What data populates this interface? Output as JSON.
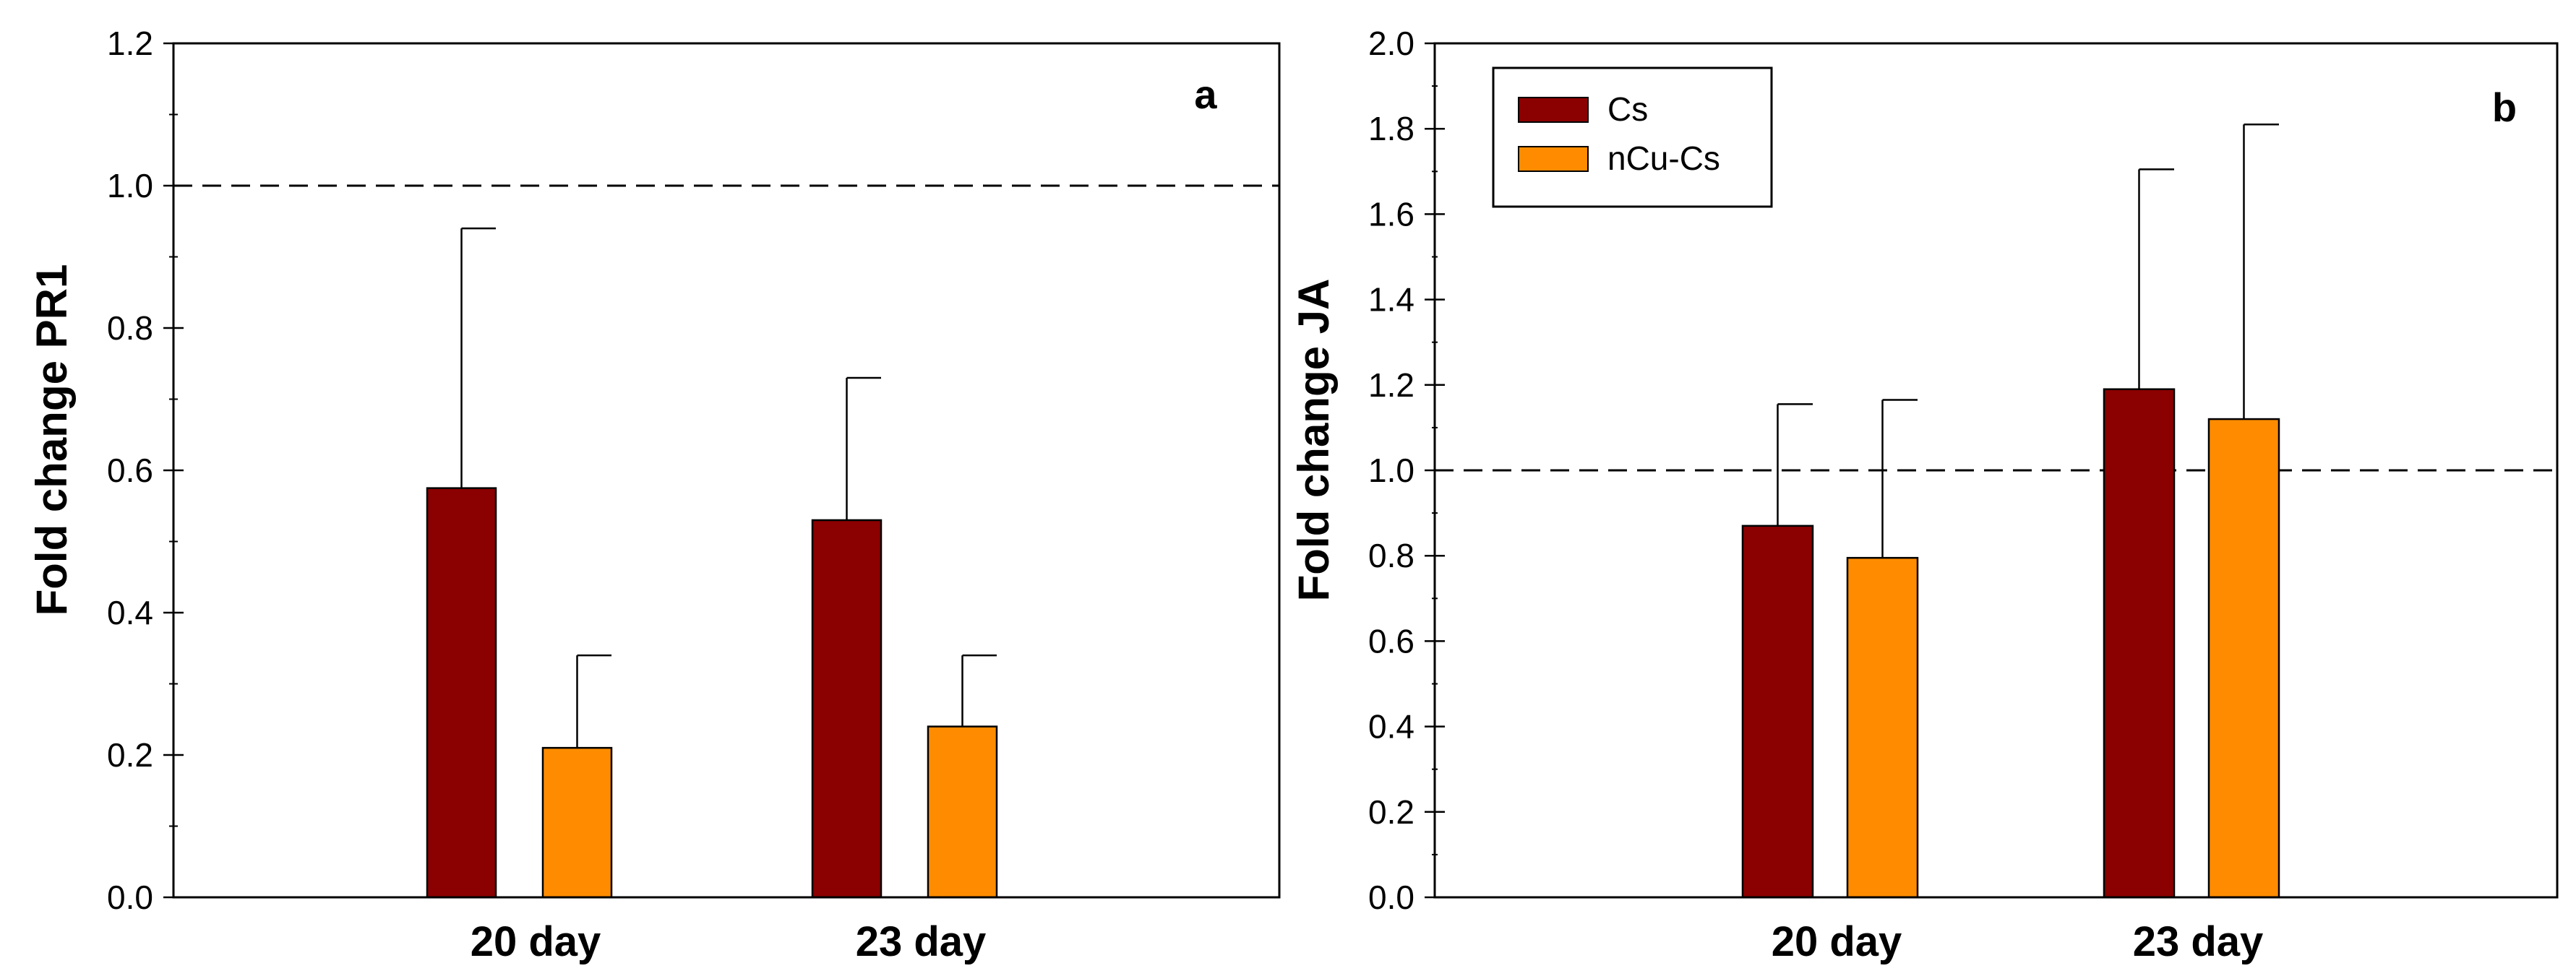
{
  "colors": {
    "Cs": "#8b0000",
    "nCu-Cs": "#ff8c00",
    "reference_line": "#000000"
  },
  "legend": {
    "placement": "top-left",
    "entries": [
      {
        "key": "Cs",
        "label": "Cs"
      },
      {
        "key": "nCu-Cs",
        "label": "nCu-Cs"
      }
    ]
  },
  "chart_data": [
    {
      "type": "bar",
      "panel": "a",
      "ylabel": "Fold change PR1",
      "xlabel": "",
      "categories": [
        "20 day",
        "23 day"
      ],
      "ylim": [
        0.0,
        1.2
      ],
      "yticks": [
        "0.0",
        "0.2",
        "0.4",
        "0.6",
        "0.8",
        "1.0",
        "1.2"
      ],
      "reference_line": 1.0,
      "grid": false,
      "series": [
        {
          "key": "Cs",
          "name": "Cs",
          "values": [
            0.575,
            0.53
          ],
          "error_upper": [
            0.94,
            0.73
          ]
        },
        {
          "key": "nCu-Cs",
          "name": "nCu-Cs",
          "values": [
            0.21,
            0.24
          ],
          "error_upper": [
            0.34,
            0.34
          ]
        }
      ]
    },
    {
      "type": "bar",
      "panel": "b",
      "ylabel": "Fold change JA",
      "xlabel": "",
      "categories": [
        "20 day",
        "23 day"
      ],
      "ylim": [
        0.0,
        2.0
      ],
      "yticks": [
        "0.0",
        "0.2",
        "0.4",
        "0.6",
        "0.8",
        "1.0",
        "1.2",
        "1.4",
        "1.6",
        "1.8",
        "2.0"
      ],
      "reference_line": 1.0,
      "grid": false,
      "series": [
        {
          "key": "Cs",
          "name": "Cs",
          "values": [
            0.87,
            1.19
          ],
          "error_upper": [
            1.155,
            1.705
          ]
        },
        {
          "key": "nCu-Cs",
          "name": "nCu-Cs",
          "values": [
            0.795,
            1.12
          ],
          "error_upper": [
            1.165,
            1.81
          ]
        }
      ]
    }
  ]
}
